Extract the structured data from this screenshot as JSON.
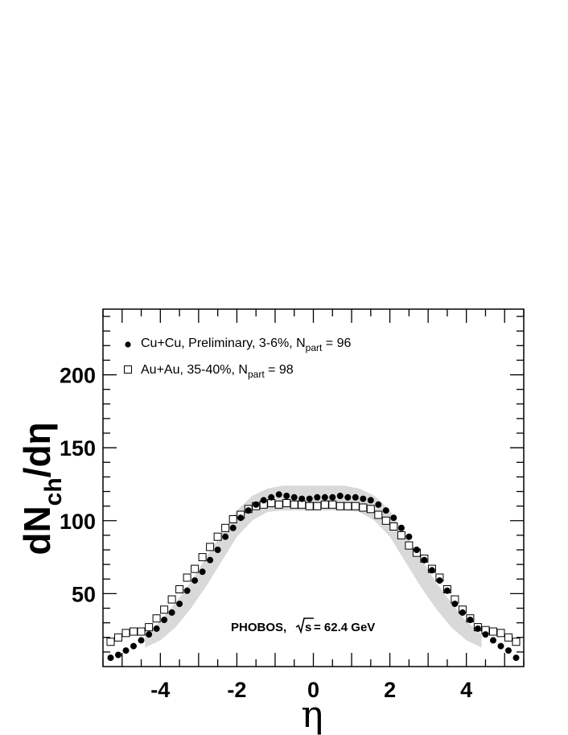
{
  "chart_data": {
    "type": "scatter",
    "title": "",
    "xlabel": "η",
    "ylabel_main": "dN",
    "ylabel_sub": "ch",
    "ylabel_tail": "/dη",
    "xlim": [
      -5.5,
      5.5
    ],
    "ylim": [
      0,
      245
    ],
    "x_ticks": [
      -4,
      -2,
      0,
      2,
      4
    ],
    "x_tick_labels": [
      "-4",
      "-2",
      "0",
      "2",
      "4"
    ],
    "y_ticks": [
      50,
      100,
      150,
      200
    ],
    "y_tick_labels": [
      "50",
      "100",
      "150",
      "200"
    ],
    "grid": false,
    "legend_position": "top-left",
    "annotation": {
      "prefix": "PHOBOS, ",
      "sqrt_var": "s",
      "suffix": " = 62.4 GeV"
    },
    "series": [
      {
        "name_main": "Cu+Cu, Preliminary, 3-6%, N",
        "name_sub": "part",
        "name_tail": " = 96",
        "marker": "filled-circle",
        "color": "#000000",
        "x": [
          -5.3,
          -5.1,
          -4.9,
          -4.7,
          -4.5,
          -4.3,
          -4.1,
          -3.9,
          -3.7,
          -3.5,
          -3.3,
          -3.1,
          -2.9,
          -2.7,
          -2.5,
          -2.3,
          -2.1,
          -1.9,
          -1.7,
          -1.5,
          -1.3,
          -1.1,
          -0.9,
          -0.7,
          -0.5,
          -0.3,
          -0.1,
          0.1,
          0.3,
          0.5,
          0.7,
          0.9,
          1.1,
          1.3,
          1.5,
          1.7,
          1.9,
          2.1,
          2.3,
          2.5,
          2.7,
          2.9,
          3.1,
          3.3,
          3.5,
          3.7,
          3.9,
          4.1,
          4.3,
          4.5,
          4.7,
          4.9,
          5.1,
          5.3
        ],
        "y": [
          6,
          8,
          11,
          14,
          18,
          22,
          26,
          32,
          37,
          43,
          52,
          59,
          65,
          73,
          80,
          89,
          95,
          102,
          107,
          111,
          114,
          116,
          118,
          117,
          116,
          115,
          115,
          116,
          116,
          116,
          117,
          116,
          116,
          115,
          114,
          111,
          107,
          102,
          95,
          89,
          80,
          73,
          66,
          59,
          52,
          43,
          37,
          32,
          26,
          22,
          18,
          14,
          11,
          6
        ]
      },
      {
        "name_main": "Au+Au, 35-40%, N",
        "name_sub": "part",
        "name_tail": " = 98",
        "marker": "open-square",
        "color": "#000000",
        "x": [
          -5.3,
          -5.1,
          -4.9,
          -4.7,
          -4.5,
          -4.3,
          -4.1,
          -3.9,
          -3.7,
          -3.5,
          -3.3,
          -3.1,
          -2.9,
          -2.7,
          -2.5,
          -2.3,
          -2.1,
          -1.9,
          -1.7,
          -1.5,
          -1.3,
          -1.1,
          -0.9,
          -0.7,
          -0.5,
          -0.3,
          -0.1,
          0.1,
          0.3,
          0.5,
          0.7,
          0.9,
          1.1,
          1.3,
          1.5,
          1.7,
          1.9,
          2.1,
          2.3,
          2.5,
          2.7,
          2.9,
          3.1,
          3.3,
          3.5,
          3.7,
          3.9,
          4.1,
          4.3,
          4.5,
          4.7,
          4.9,
          5.1,
          5.3
        ],
        "y": [
          17,
          20,
          23,
          24,
          24,
          27,
          33,
          39,
          46,
          53,
          61,
          67,
          75,
          82,
          89,
          95,
          101,
          104,
          108,
          110,
          111,
          112,
          111,
          112,
          111,
          111,
          110,
          110,
          111,
          111,
          110,
          110,
          110,
          109,
          108,
          104,
          100,
          96,
          90,
          83,
          78,
          74,
          67,
          61,
          53,
          46,
          39,
          33,
          27,
          25,
          24,
          23,
          20,
          17
        ]
      }
    ],
    "band": {
      "color": "#d9d9d9",
      "x": [
        -4.4,
        -4.0,
        -3.6,
        -3.2,
        -2.8,
        -2.4,
        -2.0,
        -1.6,
        -1.2,
        -0.8,
        -0.4,
        0.0,
        0.4,
        0.8,
        1.2,
        1.6,
        2.0,
        2.4,
        2.8,
        3.2,
        3.6,
        4.0,
        4.4
      ],
      "lower": [
        13,
        18,
        27,
        40,
        55,
        72,
        89,
        100,
        106,
        107,
        107,
        107,
        107,
        107,
        106,
        100,
        89,
        72,
        55,
        40,
        27,
        18,
        13
      ],
      "upper": [
        22,
        31,
        44,
        58,
        75,
        91,
        107,
        117,
        122,
        124,
        124,
        124,
        124,
        124,
        122,
        117,
        107,
        91,
        75,
        58,
        44,
        31,
        22
      ]
    }
  }
}
